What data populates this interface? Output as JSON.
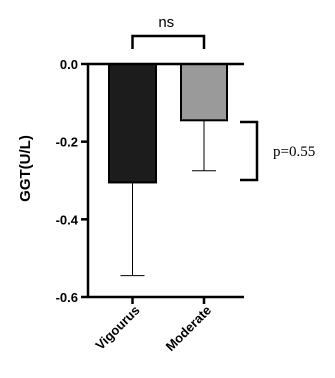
{
  "chart_data": {
    "type": "bar",
    "categories": [
      "Vigourus",
      "Moderate"
    ],
    "values": [
      -0.305,
      -0.145
    ],
    "errors": [
      0.24,
      0.13
    ],
    "ylabel": "GGT(U/L)",
    "ylim": [
      -0.6,
      0.0
    ],
    "yticks": [
      0.0,
      -0.2,
      -0.4,
      -0.6
    ],
    "ytick_labels": [
      "0.0",
      "-0.2",
      "-0.4",
      "-0.6"
    ],
    "bar_colors": [
      "#1c1c1c",
      "#9a9a9a"
    ],
    "annotations": {
      "between_bars": "ns",
      "p_value": "p=0.55"
    },
    "grid": false,
    "legend": "none"
  }
}
